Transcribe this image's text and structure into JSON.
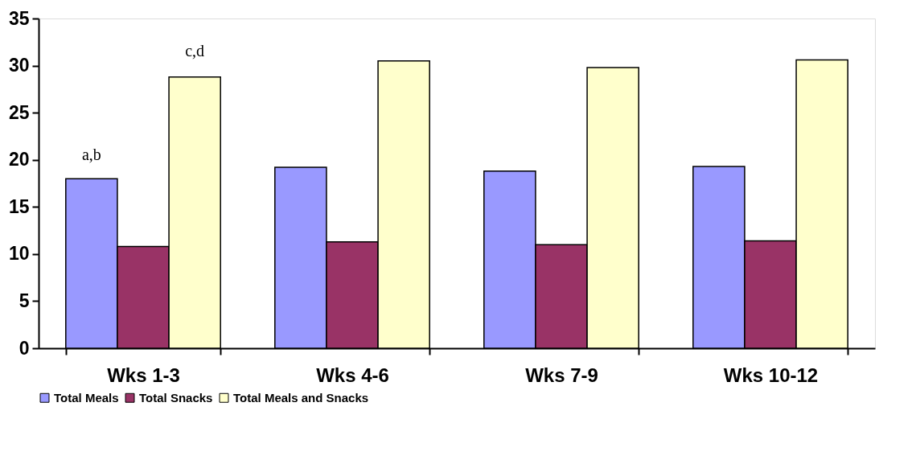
{
  "chart_data": {
    "type": "bar",
    "categories": [
      "Wks 1-3",
      "Wks 4-6",
      "Wks 7-9",
      "Wks 10-12"
    ],
    "series": [
      {
        "name": "Total Meals",
        "color": "#9999ff",
        "values": [
          18.0,
          19.2,
          18.8,
          19.3
        ]
      },
      {
        "name": "Total Snacks",
        "color": "#993366",
        "values": [
          10.8,
          11.3,
          11.0,
          11.4
        ]
      },
      {
        "name": "Total Meals and Snacks",
        "color": "#ffffcc",
        "values": [
          28.8,
          30.5,
          29.8,
          30.6
        ]
      }
    ],
    "ylim": [
      0,
      35
    ],
    "yticks": [
      0,
      5,
      10,
      15,
      20,
      25,
      30,
      35
    ],
    "grid": false,
    "legend": "bottom",
    "annotations": [
      "a,b",
      "c,d"
    ]
  }
}
